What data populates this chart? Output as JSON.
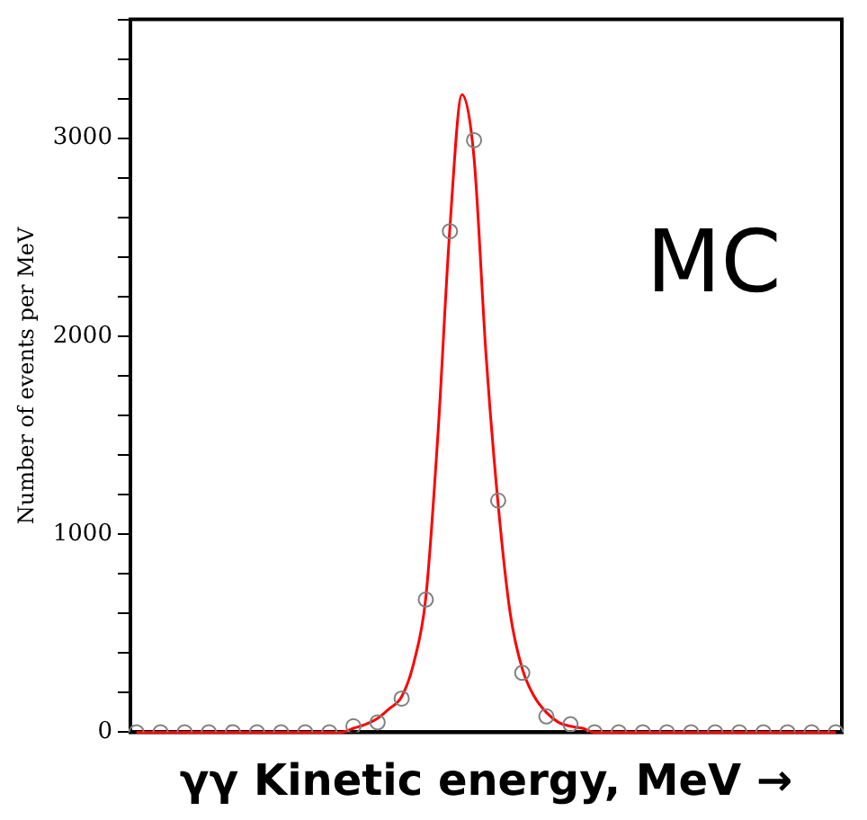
{
  "chart_data": {
    "type": "scatter",
    "xlabel": "γγ Kinetic energy, MeV →",
    "ylabel": "Number of events per MeV",
    "annotations": [
      "MC"
    ],
    "categories": [
      null,
      null,
      null,
      null,
      null,
      null,
      null,
      null,
      null,
      null,
      null,
      null,
      null,
      null,
      null,
      null,
      null,
      null,
      null,
      null,
      null,
      null,
      null,
      null,
      null,
      null,
      null,
      null,
      null,
      null,
      null,
      null,
      null,
      null,
      null,
      null,
      null,
      null,
      null,
      null,
      null,
      null,
      null,
      null,
      null,
      null,
      null,
      null,
      null,
      null,
      null,
      null,
      null,
      null,
      null,
      null,
      null,
      null,
      null
    ],
    "series": [
      {
        "type": "line",
        "color": "#ff0000",
        "marker": "none",
        "line_style": "solid",
        "values": [
          0,
          0,
          0,
          0,
          0,
          0,
          0,
          0,
          0,
          0,
          0,
          0,
          0,
          0,
          0,
          0,
          0,
          0,
          20,
          40,
          70,
          120,
          180,
          350,
          680,
          1500,
          2550,
          3220,
          2900,
          1900,
          1150,
          600,
          320,
          180,
          100,
          50,
          30,
          20,
          0,
          0,
          0,
          0,
          0,
          0,
          0,
          0,
          0,
          0,
          0,
          0,
          0,
          0,
          0,
          0,
          0,
          0,
          0,
          0,
          0
        ]
      },
      {
        "color": "#808080",
        "marker": "circle",
        "values": [
          0,
          null,
          0,
          null,
          0,
          null,
          0,
          null,
          0,
          null,
          0,
          null,
          0,
          null,
          0,
          null,
          0,
          null,
          30,
          null,
          50,
          null,
          170,
          null,
          670,
          null,
          2530,
          null,
          2990,
          null,
          1170,
          null,
          300,
          null,
          80,
          null,
          40,
          null,
          0,
          null,
          0,
          null,
          0,
          null,
          0,
          null,
          0,
          null,
          0,
          null,
          0,
          null,
          0,
          null,
          0,
          null,
          0,
          null,
          0
        ]
      }
    ],
    "ylim": [
      0,
      3600
    ],
    "yticks": [
      0,
      {
        "value": 200,
        "label": null
      },
      {
        "value": 400,
        "label": null
      },
      {
        "value": 600,
        "label": null
      },
      {
        "value": 800,
        "label": null
      },
      1000,
      {
        "value": 1200,
        "label": null
      },
      {
        "value": 1400,
        "label": null
      },
      {
        "value": 1600,
        "label": null
      },
      {
        "value": 1800,
        "label": null
      },
      2000,
      {
        "value": 2200,
        "label": null
      },
      {
        "value": 2400,
        "label": null
      },
      {
        "value": 2600,
        "label": null
      },
      {
        "value": 2800,
        "label": null
      },
      3000,
      {
        "value": 3200,
        "label": null
      },
      {
        "value": 3400,
        "label": null
      },
      {
        "value": 3600,
        "label": null
      }
    ],
    "tick_labels": "y",
    "grid": false,
    "legend": false
  }
}
